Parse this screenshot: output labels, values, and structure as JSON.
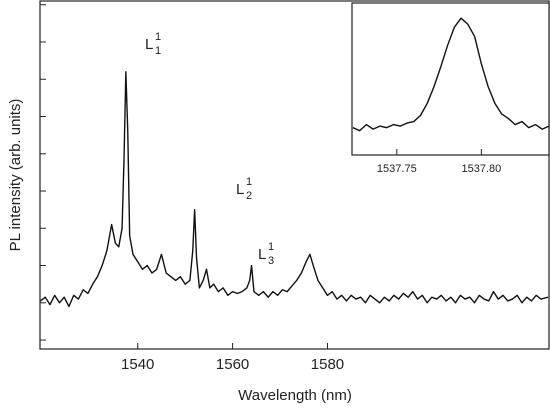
{
  "chart_data": [
    {
      "type": "line",
      "xlabel": "Wavelength (nm)",
      "ylabel": "PL intensity (arb. units)",
      "xlim": [
        1519.4,
        1626.7
      ],
      "ylim": [
        -0.24,
        9.1
      ],
      "xticks": [
        1540,
        1560,
        1580
      ],
      "yticks": [
        0,
        1,
        2,
        3,
        4,
        5,
        6,
        7,
        8,
        9
      ],
      "annotations": [
        {
          "text": "L",
          "sub": "1",
          "sup": "1"
        },
        {
          "text": "L",
          "sub": "2",
          "sup": "1"
        },
        {
          "text": "L",
          "sub": "3",
          "sup": "1"
        }
      ],
      "series": [
        {
          "color": "#111111",
          "x": [
            1519.5,
            1520.5,
            1521.5,
            1522.5,
            1523.5,
            1524.5,
            1525.5,
            1526.5,
            1527.5,
            1528.5,
            1529.5,
            1530.5,
            1531.5,
            1532.5,
            1533.5,
            1534.5,
            1535.3,
            1536,
            1536.7,
            1537.1,
            1537.5,
            1537.9,
            1538.3,
            1539,
            1540,
            1541,
            1542,
            1543,
            1544,
            1545,
            1546,
            1547,
            1548,
            1549,
            1550,
            1551,
            1551.6,
            1552,
            1552.4,
            1553,
            1553.8,
            1554.5,
            1555.2,
            1556,
            1557,
            1558,
            1559,
            1560,
            1561,
            1562,
            1563,
            1563.6,
            1564,
            1564.5,
            1565.5,
            1566.5,
            1567.5,
            1568.5,
            1569.5,
            1570.5,
            1571.5,
            1572.5,
            1573.5,
            1574.5,
            1575.5,
            1576.3,
            1577,
            1578,
            1579,
            1580,
            1581,
            1582,
            1583,
            1584,
            1585,
            1586,
            1587,
            1588,
            1589,
            1590,
            1591,
            1592,
            1593,
            1594,
            1595,
            1596,
            1597,
            1598,
            1599,
            1600,
            1601,
            1602,
            1603,
            1604,
            1605,
            1606,
            1607,
            1608,
            1609,
            1610,
            1611,
            1612,
            1613,
            1614,
            1615,
            1616,
            1617,
            1618,
            1619,
            1620,
            1621,
            1622,
            1623,
            1624,
            1625,
            1626.5
          ],
          "values": [
            1.05,
            1.15,
            0.95,
            1.2,
            1.0,
            1.15,
            0.9,
            1.2,
            1.1,
            1.35,
            1.25,
            1.5,
            1.7,
            2.0,
            2.4,
            3.1,
            2.6,
            2.5,
            3.0,
            4.8,
            7.2,
            5.6,
            2.8,
            2.3,
            2.1,
            1.9,
            2.0,
            1.8,
            1.9,
            2.3,
            1.8,
            1.7,
            1.6,
            1.7,
            1.5,
            1.6,
            2.4,
            3.5,
            2.2,
            1.4,
            1.6,
            1.9,
            1.4,
            1.5,
            1.3,
            1.4,
            1.2,
            1.3,
            1.25,
            1.3,
            1.4,
            1.6,
            2.0,
            1.3,
            1.2,
            1.3,
            1.15,
            1.3,
            1.2,
            1.35,
            1.3,
            1.45,
            1.6,
            1.8,
            2.1,
            2.3,
            2.0,
            1.6,
            1.4,
            1.2,
            1.3,
            1.1,
            1.2,
            1.05,
            1.2,
            1.1,
            1.15,
            1.0,
            1.2,
            1.1,
            1.0,
            1.15,
            1.05,
            1.2,
            1.1,
            1.25,
            1.15,
            1.3,
            1.1,
            1.2,
            1.0,
            1.15,
            1.1,
            1.2,
            1.05,
            1.15,
            1.0,
            1.2,
            1.1,
            1.15,
            1.0,
            1.2,
            1.1,
            1.05,
            1.3,
            1.1,
            1.2,
            1.05,
            1.1,
            1.2,
            1.0,
            1.15,
            1.05,
            1.2,
            1.1,
            1.15
          ]
        }
      ]
    },
    {
      "type": "line",
      "xlim": [
        1537.7235,
        1537.84
      ],
      "ylim": [
        0,
        1
      ],
      "xticks": [
        1537.75,
        {
          "value": 1537.8,
          "label": "1537.80"
        }
      ],
      "series": [
        {
          "color": "#111111",
          "x": [
            1537.724,
            1537.728,
            1537.732,
            1537.736,
            1537.74,
            1537.744,
            1537.748,
            1537.752,
            1537.756,
            1537.76,
            1537.764,
            1537.768,
            1537.772,
            1537.776,
            1537.78,
            1537.784,
            1537.788,
            1537.792,
            1537.796,
            1537.8,
            1537.804,
            1537.808,
            1537.812,
            1537.816,
            1537.82,
            1537.824,
            1537.828,
            1537.832,
            1537.836,
            1537.84
          ],
          "values": [
            0.18,
            0.16,
            0.2,
            0.17,
            0.19,
            0.18,
            0.2,
            0.19,
            0.21,
            0.22,
            0.26,
            0.34,
            0.45,
            0.58,
            0.72,
            0.84,
            0.9,
            0.86,
            0.78,
            0.6,
            0.45,
            0.34,
            0.27,
            0.24,
            0.2,
            0.22,
            0.18,
            0.2,
            0.17,
            0.19
          ]
        }
      ]
    }
  ]
}
